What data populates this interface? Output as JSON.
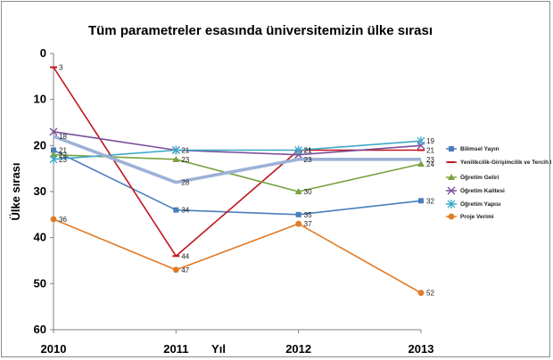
{
  "chart_data": {
    "type": "line",
    "title": "Tüm parametreler esasında üniversitemizin ülke sırası",
    "xlabel": "Yıl",
    "ylabel": "Ülke sırası",
    "x": [
      "2010",
      "2011",
      "2012",
      "2013"
    ],
    "ylim": [
      0,
      60
    ],
    "y_reversed": true,
    "y_ticks": [
      0,
      10,
      20,
      30,
      40,
      50,
      60
    ],
    "grid": false,
    "legend_position": "right",
    "series": [
      {
        "name": "Bilimsel Yayın",
        "values": [
          21,
          34,
          35,
          32
        ],
        "color": "#4a7ebb",
        "marker": "square",
        "labels": [
          "21",
          "34",
          "35",
          "32"
        ]
      },
      {
        "name": "Yenilikcilik-Girişimcilik ve Tercih Edilebilirlik",
        "values": [
          3,
          44,
          21,
          21
        ],
        "color": "#c0161e",
        "marker": "dash",
        "labels": [
          "3",
          "44",
          "21",
          "21"
        ]
      },
      {
        "name": "Öğretim Geliri",
        "values": [
          22,
          23,
          30,
          24
        ],
        "color": "#77a23d",
        "marker": "triangle",
        "labels": [
          "22",
          "23",
          "30",
          "24"
        ]
      },
      {
        "name": "Öğretim Kalitesi",
        "values": [
          17,
          21,
          22,
          20
        ],
        "color": "#7a4f9a",
        "marker": "x",
        "labels": [
          "",
          "",
          "",
          ""
        ]
      },
      {
        "name": "Öğretim Yapısı",
        "values": [
          23,
          21,
          21,
          19
        ],
        "color": "#3ea8c7",
        "marker": "star",
        "labels": [
          "23",
          "21",
          "21",
          "19"
        ]
      },
      {
        "name": "Proje Verimi",
        "values": [
          36,
          47,
          37,
          52
        ],
        "color": "#e07a25",
        "marker": "circle",
        "labels": [
          "36",
          "47",
          "37",
          "52"
        ]
      },
      {
        "name": "",
        "values": [
          18,
          28,
          23,
          23
        ],
        "color": "#9db1d6",
        "marker": "none",
        "wide": true,
        "labels": [
          "18",
          "28",
          "23",
          "23"
        ]
      }
    ]
  }
}
